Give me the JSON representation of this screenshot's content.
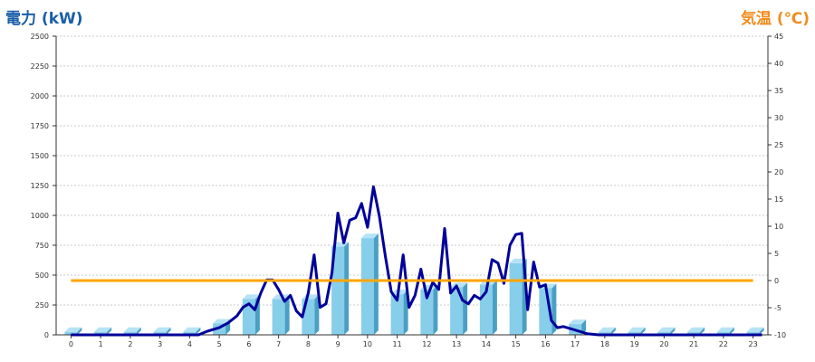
{
  "chart_data": {
    "type": "bar",
    "title_left": "電力 (kW)",
    "title_right": "気温 (℃)",
    "categories": [
      "0",
      "1",
      "2",
      "3",
      "4",
      "5",
      "6",
      "7",
      "8",
      "9",
      "10",
      "11",
      "12",
      "13",
      "14",
      "15",
      "16",
      "17",
      "18",
      "19",
      "20",
      "21",
      "22",
      "23"
    ],
    "y_left": {
      "min": 0,
      "max": 2500,
      "ticks": [
        0,
        250,
        500,
        750,
        1000,
        1250,
        1500,
        1750,
        2000,
        2250,
        2500
      ]
    },
    "y_right": {
      "min": -10,
      "max": 45,
      "ticks": [
        -10,
        -5,
        0,
        5,
        10,
        15,
        20,
        25,
        30,
        35,
        40,
        45
      ]
    },
    "grid": true,
    "series": [
      {
        "type": "bar",
        "axis": "left",
        "color": "#87ceeb",
        "values": [
          25,
          25,
          25,
          25,
          25,
          95,
          300,
          300,
          300,
          740,
          810,
          340,
          380,
          400,
          420,
          600,
          390,
          90,
          25,
          25,
          25,
          25,
          25,
          25
        ]
      },
      {
        "type": "line",
        "axis": "left",
        "color": "#000099",
        "x": [
          0,
          4.3,
          4.6,
          5.0,
          5.3,
          5.6,
          5.8,
          6.0,
          6.2,
          6.4,
          6.6,
          6.8,
          7.0,
          7.2,
          7.4,
          7.6,
          7.8,
          8.0,
          8.2,
          8.4,
          8.6,
          8.8,
          9.0,
          9.2,
          9.4,
          9.6,
          9.8,
          10.0,
          10.2,
          10.4,
          10.6,
          10.8,
          11.0,
          11.2,
          11.4,
          11.6,
          11.8,
          12.0,
          12.2,
          12.4,
          12.6,
          12.8,
          13.0,
          13.2,
          13.4,
          13.6,
          13.8,
          14.0,
          14.2,
          14.4,
          14.6,
          14.8,
          15.0,
          15.2,
          15.4,
          15.6,
          15.8,
          16.0,
          16.2,
          16.4,
          16.6,
          17.0,
          17.4,
          17.8,
          18.2,
          23.3
        ],
        "values": [
          0,
          0,
          30,
          60,
          100,
          160,
          230,
          260,
          210,
          350,
          460,
          460,
          380,
          280,
          330,
          200,
          150,
          350,
          670,
          230,
          260,
          520,
          1020,
          770,
          960,
          980,
          1100,
          900,
          1240,
          990,
          660,
          360,
          290,
          670,
          230,
          330,
          550,
          310,
          440,
          380,
          890,
          350,
          410,
          290,
          260,
          330,
          300,
          360,
          630,
          600,
          430,
          750,
          840,
          850,
          210,
          610,
          400,
          420,
          120,
          60,
          70,
          40,
          10,
          0,
          0,
          0
        ]
      },
      {
        "type": "line",
        "axis": "right",
        "color": "#ffa500",
        "x": [
          0,
          23
        ],
        "values": [
          0,
          0
        ]
      }
    ]
  }
}
